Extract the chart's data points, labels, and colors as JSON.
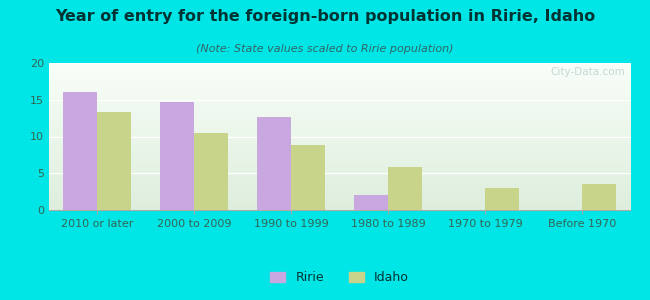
{
  "title": "Year of entry for the foreign-born population in Ririe, Idaho",
  "subtitle": "(Note: State values scaled to Ririe population)",
  "categories": [
    "2010 or later",
    "2000 to 2009",
    "1990 to 1999",
    "1980 to 1989",
    "1970 to 1979",
    "Before 1970"
  ],
  "ririe_values": [
    16.0,
    14.7,
    12.7,
    2.0,
    0,
    0
  ],
  "idaho_values": [
    13.3,
    10.5,
    8.8,
    5.8,
    3.0,
    3.6
  ],
  "ririe_color": "#c9a8e0",
  "idaho_color": "#c8d48a",
  "background_color": "#00e5e5",
  "plot_bg_top": "#deeedd",
  "plot_bg_bottom": "#f8fef8",
  "ylim": [
    0,
    20
  ],
  "yticks": [
    0,
    5,
    10,
    15,
    20
  ],
  "bar_width": 0.35,
  "title_fontsize": 11.5,
  "subtitle_fontsize": 8,
  "tick_fontsize": 8,
  "legend_fontsize": 9
}
